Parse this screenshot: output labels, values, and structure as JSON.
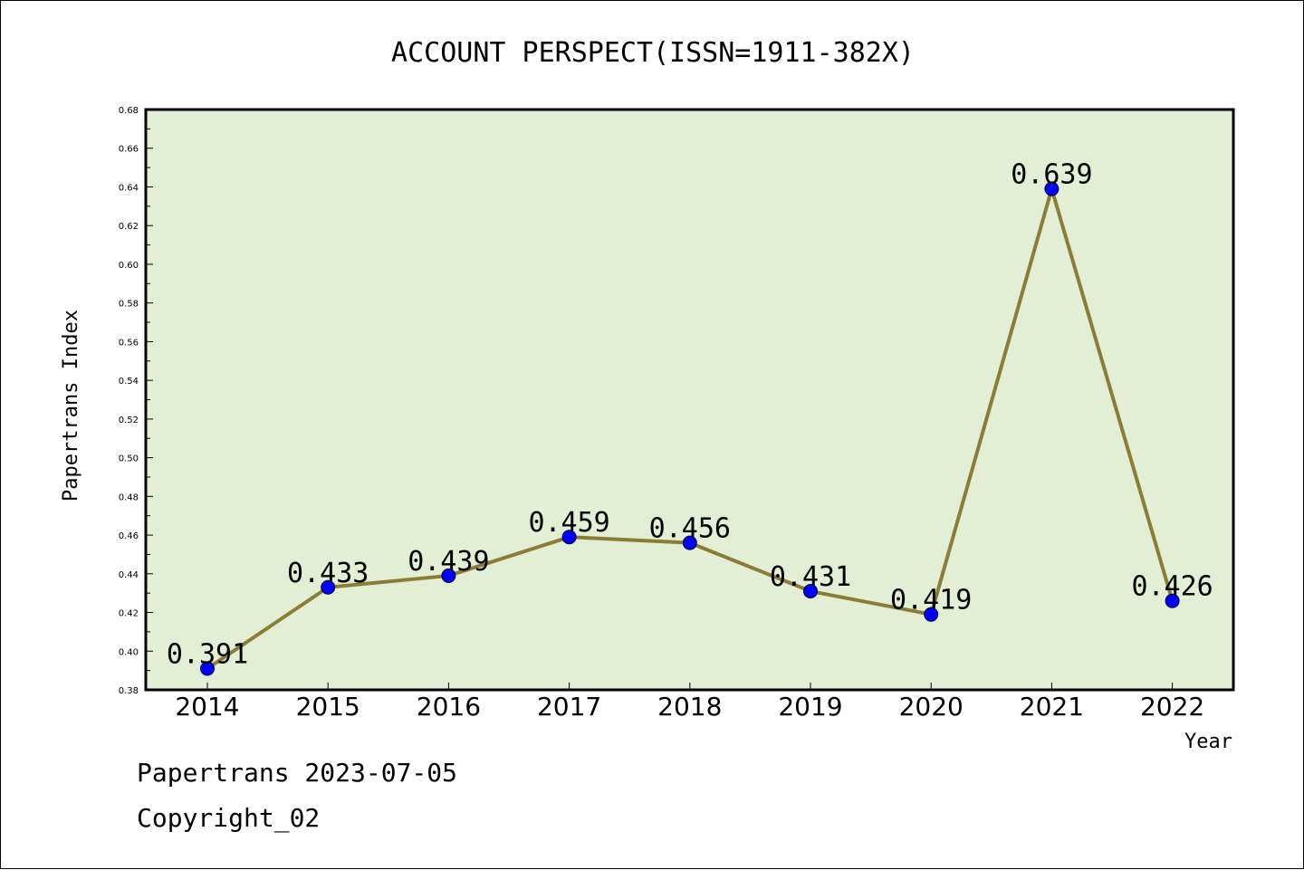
{
  "chart_data": {
    "type": "line",
    "title": "ACCOUNT PERSPECT(ISSN=1911-382X)",
    "xlabel": "Year",
    "ylabel": "Papertrans Index",
    "categories": [
      "2014",
      "2015",
      "2016",
      "2017",
      "2018",
      "2019",
      "2020",
      "2021",
      "2022"
    ],
    "series": [
      {
        "values": [
          0.391,
          0.433,
          0.439,
          0.459,
          0.456,
          0.431,
          0.419,
          0.639,
          0.426
        ]
      }
    ],
    "data_labels": [
      "0.391",
      "0.433",
      "0.439",
      "0.459",
      "0.456",
      "0.431",
      "0.419",
      "0.639",
      "0.426"
    ],
    "ylim": [
      0.38,
      0.68
    ],
    "yticks": [
      "0.38",
      "0.40",
      "0.42",
      "0.44",
      "0.46",
      "0.48",
      "0.50",
      "0.52",
      "0.54",
      "0.56",
      "0.58",
      "0.60",
      "0.62",
      "0.64",
      "0.66",
      "0.68"
    ],
    "grid": false,
    "colors": {
      "plot_background": "#e2efd4",
      "line": "#8b7d35",
      "marker": "#0000ff"
    }
  },
  "footer": {
    "line1": "Papertrans 2023-07-05",
    "line2": "Copyright_02"
  }
}
